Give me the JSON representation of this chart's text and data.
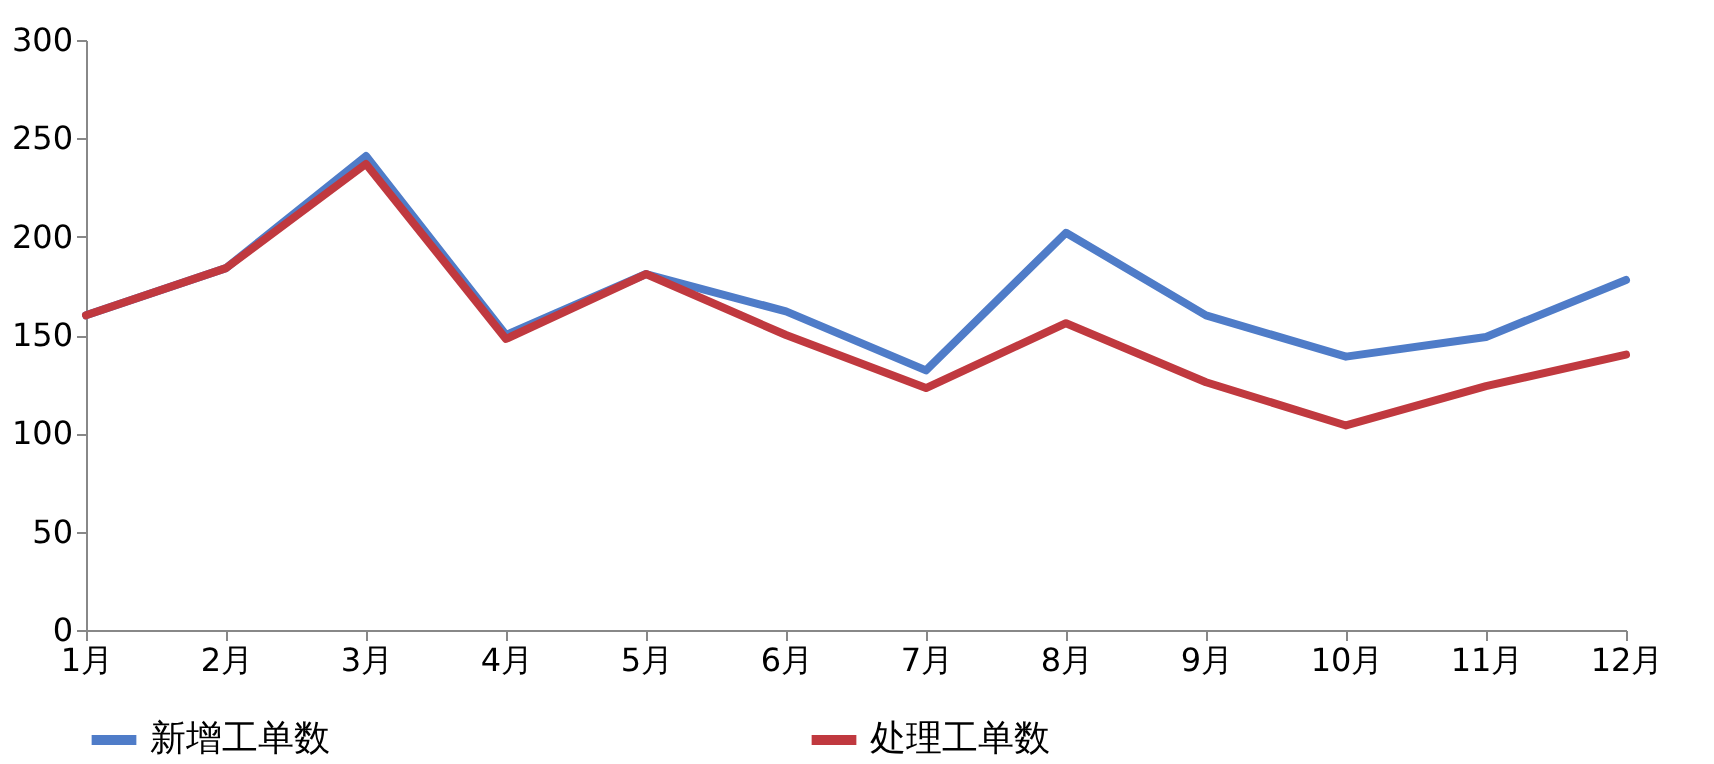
{
  "chart_data": {
    "type": "line",
    "categories": [
      "1月",
      "2月",
      "3月",
      "4月",
      "5月",
      "6月",
      "7月",
      "8月",
      "9月",
      "10月",
      "11月",
      "12月"
    ],
    "series": [
      {
        "name": "新增工单数",
        "color": "#4f7cc8",
        "values": [
          160,
          184,
          241,
          150,
          181,
          162,
          132,
          202,
          160,
          139,
          149,
          178
        ]
      },
      {
        "name": "处理工单数",
        "color": "#c0393f",
        "values": [
          160,
          184,
          237,
          148,
          181,
          150,
          123,
          156,
          126,
          104,
          124,
          140
        ]
      }
    ],
    "ylim": [
      0,
      300
    ],
    "yticks": [
      0,
      50,
      100,
      150,
      200,
      250,
      300
    ],
    "grid": false,
    "legend": "bottom",
    "marker": "none",
    "line_style": "solid"
  }
}
